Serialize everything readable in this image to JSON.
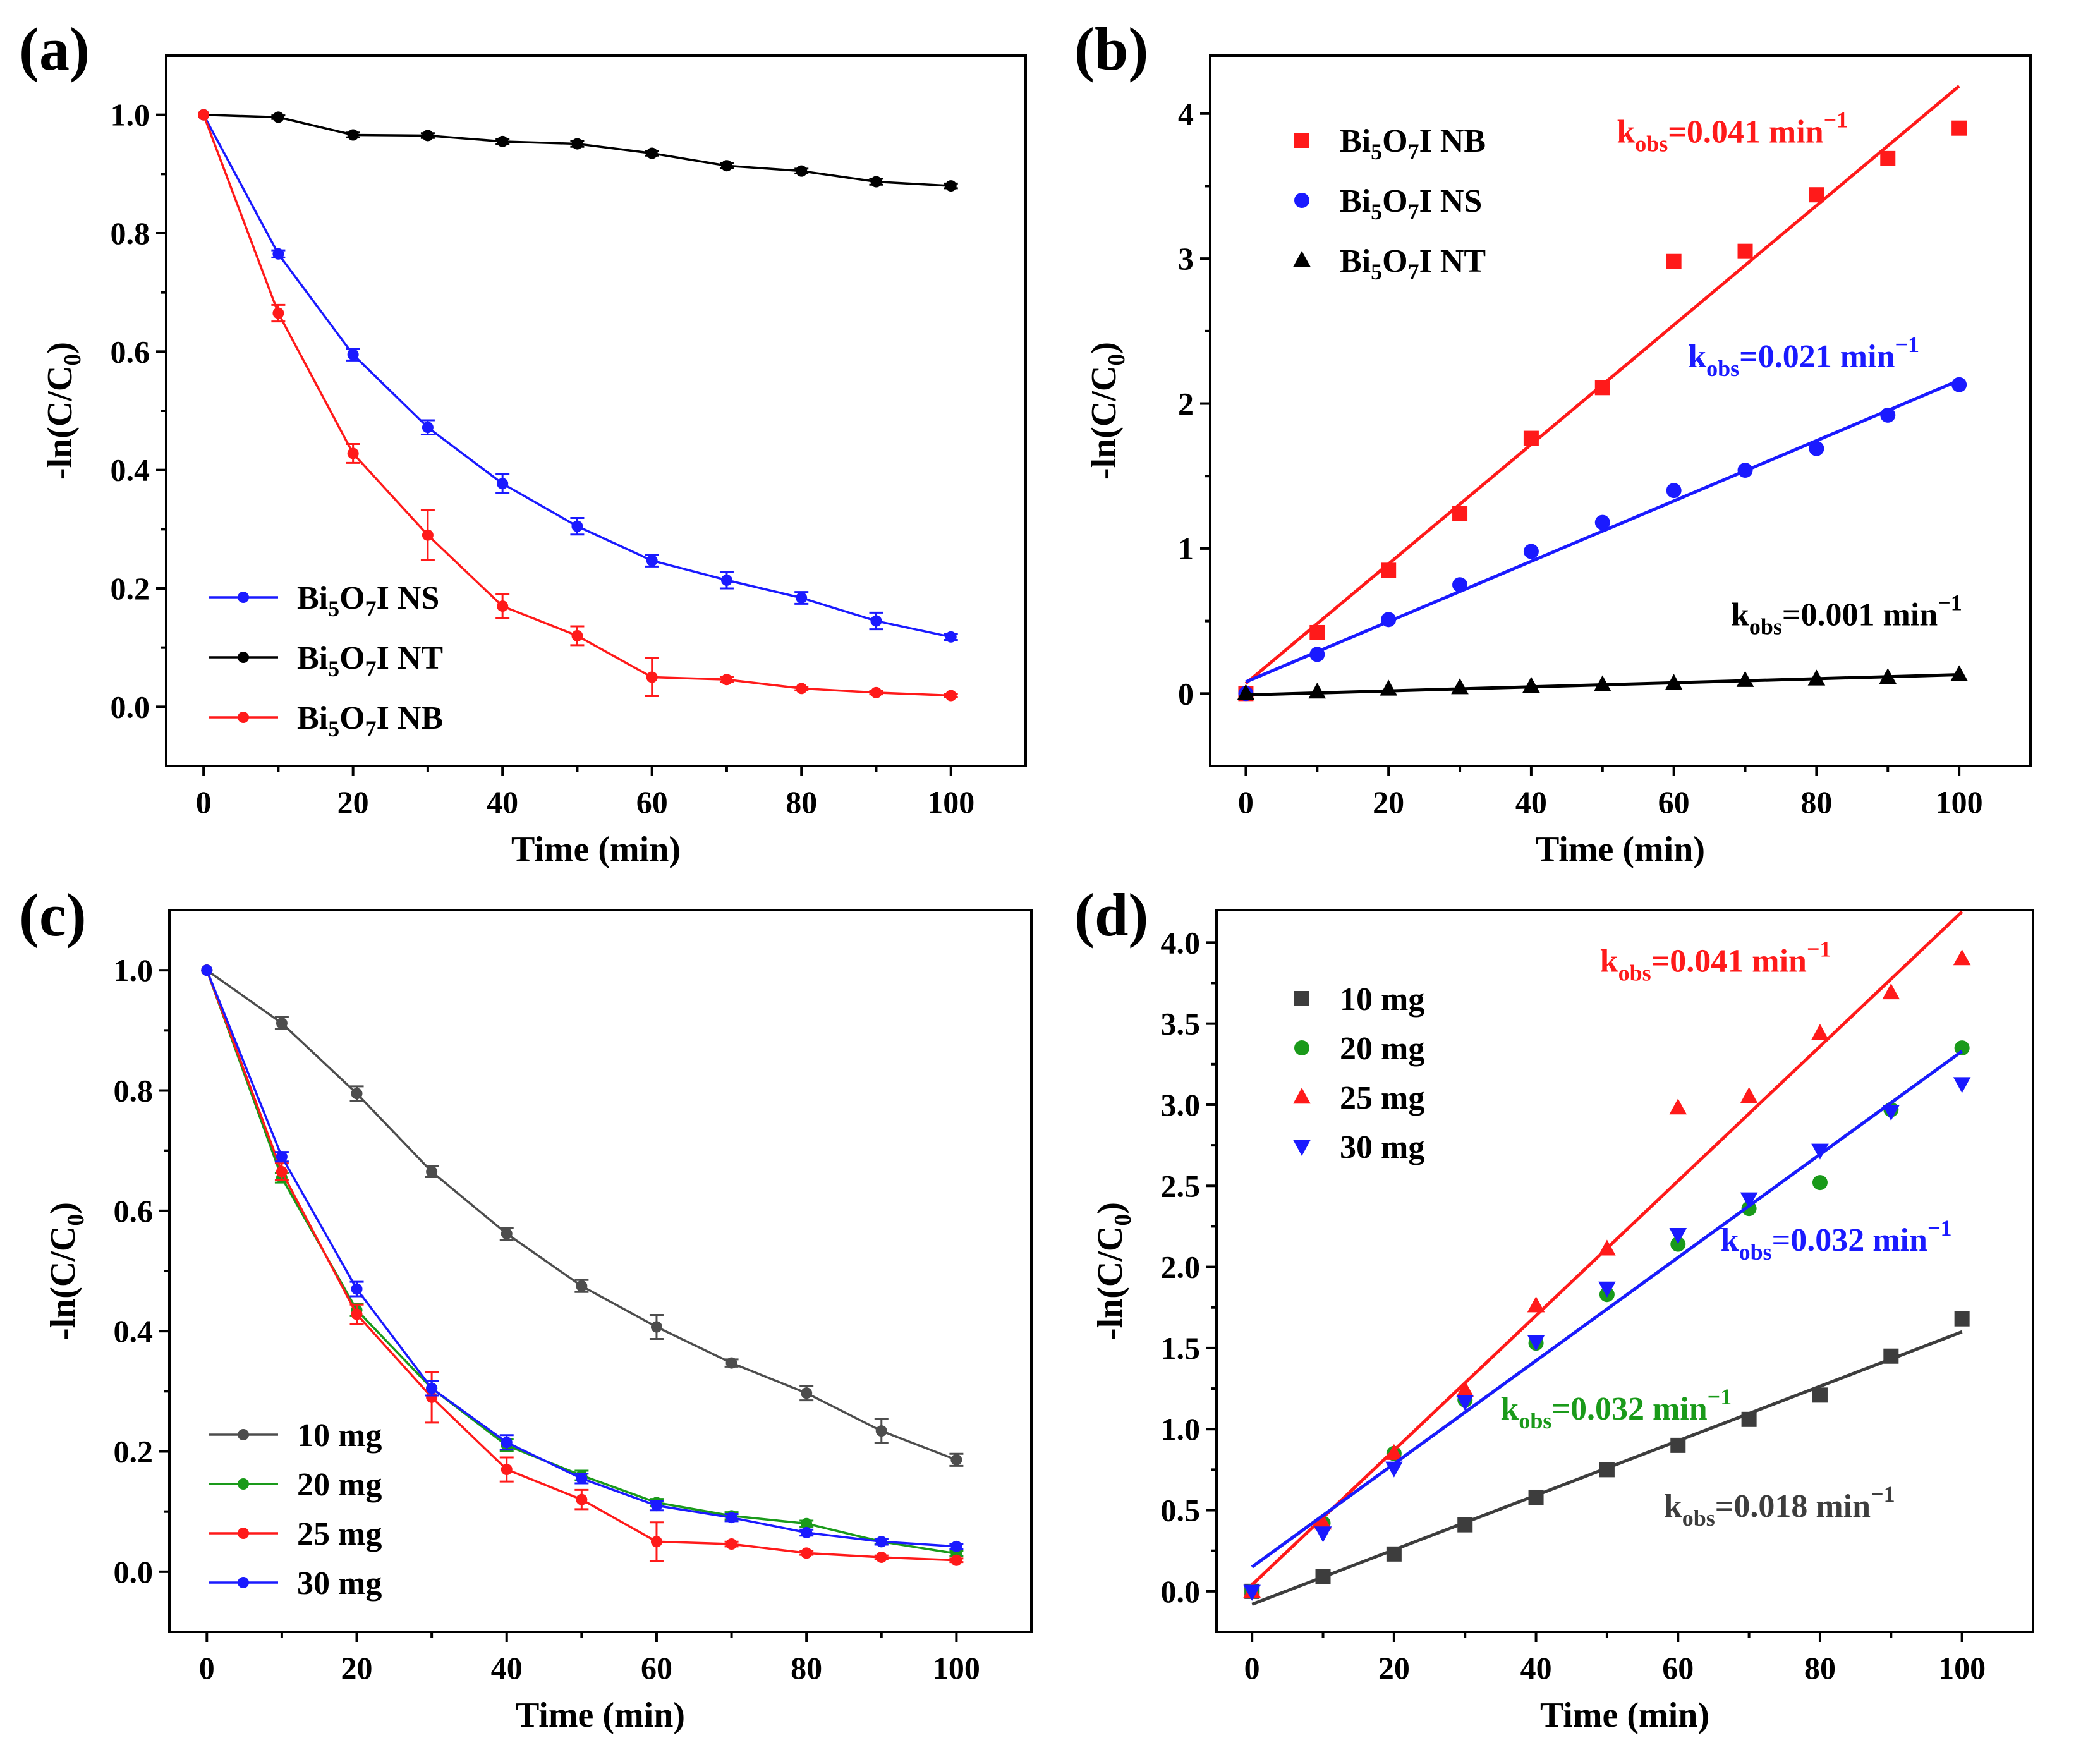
{
  "chart_data": [
    {
      "panel": "(a)",
      "type": "line",
      "xlabel": "Time (min)",
      "ylabel": "-ln(C/C0)",
      "xlim": [
        -5,
        110
      ],
      "ylim": [
        -0.1,
        1.1
      ],
      "xticks": [
        "0",
        "20",
        "40",
        "60",
        "80",
        "100"
      ],
      "yticks": [
        "0.0",
        "0.2",
        "0.4",
        "0.6",
        "0.8",
        "1.0"
      ],
      "legend_position": "bottom-left",
      "x": [
        0,
        10,
        20,
        30,
        40,
        50,
        60,
        70,
        80,
        90,
        100
      ],
      "series": [
        {
          "name": "Bi5O7I NS",
          "color": "#1a1aff",
          "marker": "circle",
          "values": [
            1.0,
            0.765,
            0.595,
            0.472,
            0.377,
            0.305,
            0.247,
            0.214,
            0.184,
            0.145,
            0.118
          ],
          "errors": [
            0,
            0.006,
            0.01,
            0.012,
            0.016,
            0.014,
            0.01,
            0.014,
            0.01,
            0.014,
            0.005
          ]
        },
        {
          "name": "Bi5O7I NT",
          "color": "#000000",
          "marker": "circle",
          "values": [
            1.0,
            0.996,
            0.966,
            0.965,
            0.955,
            0.951,
            0.935,
            0.914,
            0.905,
            0.887,
            0.88
          ],
          "errors": [
            0,
            0.003,
            0.004,
            0.004,
            0.004,
            0.005,
            0.004,
            0.004,
            0.004,
            0.005,
            0.004
          ]
        },
        {
          "name": "Bi5O7I NB",
          "color": "#ff1a1a",
          "marker": "circle",
          "values": [
            1.0,
            0.665,
            0.428,
            0.29,
            0.17,
            0.12,
            0.05,
            0.046,
            0.031,
            0.024,
            0.019
          ],
          "errors": [
            0,
            0.014,
            0.016,
            0.042,
            0.02,
            0.016,
            0.032,
            0.004,
            0.003,
            0.003,
            0.003
          ]
        }
      ]
    },
    {
      "panel": "(b)",
      "type": "scatter",
      "xlabel": "Time (min)",
      "ylabel": "-ln(C/C0)",
      "xlim": [
        -5,
        110
      ],
      "ylim": [
        -0.5,
        4.4
      ],
      "xticks": [
        "0",
        "20",
        "40",
        "60",
        "80",
        "100"
      ],
      "yticks": [
        "0",
        "1",
        "2",
        "3",
        "4"
      ],
      "legend_position": "top-left",
      "x": [
        0,
        10,
        20,
        30,
        40,
        50,
        60,
        70,
        80,
        90,
        100
      ],
      "series": [
        {
          "name": "Bi5O7I NB",
          "color": "#ff1a1a",
          "marker": "square",
          "values": [
            0,
            0.42,
            0.85,
            1.24,
            1.76,
            2.11,
            2.98,
            3.05,
            3.44,
            3.69,
            3.9
          ],
          "fit": [
            0.07,
            4.19
          ],
          "k_label": "=0.041 min",
          "k_pos": [
            52,
            3.8
          ]
        },
        {
          "name": "Bi5O7I NS",
          "color": "#1a1aff",
          "marker": "circle",
          "values": [
            0,
            0.27,
            0.51,
            0.75,
            0.98,
            1.18,
            1.4,
            1.54,
            1.69,
            1.92,
            2.13
          ],
          "fit": [
            0.08,
            2.16
          ],
          "k_label": "=0.021 min",
          "k_pos": [
            62,
            2.25
          ]
        },
        {
          "name": "Bi5O7I NT",
          "color": "#000000",
          "marker": "triangle",
          "values": [
            0,
            0.01,
            0.03,
            0.04,
            0.05,
            0.06,
            0.07,
            0.09,
            0.1,
            0.11,
            0.13
          ],
          "fit": [
            -0.01,
            0.13
          ],
          "k_label": "=0.001 min",
          "k_pos": [
            68,
            0.47
          ]
        }
      ]
    },
    {
      "panel": "(c)",
      "type": "line",
      "xlabel": "Time (min)",
      "ylabel": "-ln(C/C0)",
      "xlim": [
        -5,
        110
      ],
      "ylim": [
        -0.1,
        1.1
      ],
      "xticks": [
        "0",
        "20",
        "40",
        "60",
        "80",
        "100"
      ],
      "yticks": [
        "0.0",
        "0.2",
        "0.4",
        "0.6",
        "0.8",
        "1.0"
      ],
      "legend_position": "bottom-left",
      "x": [
        0,
        10,
        20,
        30,
        40,
        50,
        60,
        70,
        80,
        90,
        100
      ],
      "series": [
        {
          "name": "10 mg",
          "color": "#4d4d4d",
          "marker": "circle",
          "values": [
            1.0,
            0.912,
            0.795,
            0.665,
            0.562,
            0.475,
            0.407,
            0.347,
            0.297,
            0.234,
            0.186
          ],
          "errors": [
            0,
            0.01,
            0.012,
            0.009,
            0.01,
            0.01,
            0.02,
            0.006,
            0.012,
            0.02,
            0.01
          ]
        },
        {
          "name": "20 mg",
          "color": "#1a9a1a",
          "marker": "circle",
          "values": [
            1.0,
            0.655,
            0.435,
            0.305,
            0.21,
            0.16,
            0.115,
            0.093,
            0.08,
            0.05,
            0.03
          ],
          "errors": [
            0,
            0.008,
            0.01,
            0.012,
            0.01,
            0.008,
            0.006,
            0.006,
            0.005,
            0.004,
            0.004
          ]
        },
        {
          "name": "25 mg",
          "color": "#ff1a1a",
          "marker": "circle",
          "values": [
            1.0,
            0.665,
            0.428,
            0.29,
            0.17,
            0.12,
            0.05,
            0.046,
            0.031,
            0.024,
            0.019
          ],
          "errors": [
            0,
            0.014,
            0.016,
            0.042,
            0.02,
            0.016,
            0.032,
            0.004,
            0.003,
            0.003,
            0.003
          ]
        },
        {
          "name": "30 mg",
          "color": "#1a1aff",
          "marker": "circle",
          "values": [
            1.0,
            0.69,
            0.47,
            0.305,
            0.215,
            0.155,
            0.11,
            0.09,
            0.065,
            0.05,
            0.042
          ],
          "errors": [
            0,
            0.008,
            0.012,
            0.012,
            0.012,
            0.008,
            0.008,
            0.006,
            0.005,
            0.005,
            0.004
          ]
        }
      ]
    },
    {
      "panel": "(d)",
      "type": "scatter",
      "xlabel": "Time (min)",
      "ylabel": "-ln(C/C0)",
      "xlim": [
        -5,
        110
      ],
      "ylim": [
        -0.25,
        4.2
      ],
      "xticks": [
        "0",
        "20",
        "40",
        "60",
        "80",
        "100"
      ],
      "yticks": [
        "0.0",
        "0.5",
        "1.0",
        "1.5",
        "2.0",
        "2.5",
        "3.0",
        "3.5",
        "4.0"
      ],
      "legend_position": "top-left",
      "x": [
        0,
        10,
        20,
        30,
        40,
        50,
        60,
        70,
        80,
        90,
        100
      ],
      "series": [
        {
          "name": "10 mg",
          "color": "#3d3d3d",
          "marker": "square",
          "values": [
            0,
            0.09,
            0.23,
            0.41,
            0.58,
            0.75,
            0.9,
            1.06,
            1.21,
            1.45,
            1.68
          ],
          "fit": [
            -0.08,
            1.6
          ],
          "k_label": "=0.018 min",
          "k_pos": [
            58,
            0.46
          ]
        },
        {
          "name": "20 mg",
          "color": "#1a9a1a",
          "marker": "circle",
          "values": [
            0,
            0.42,
            0.85,
            1.18,
            1.53,
            1.83,
            2.14,
            2.36,
            2.52,
            2.97,
            3.35
          ],
          "fit": [
            0.15,
            3.33
          ],
          "k_label": "=0.032 min",
          "k_pos": [
            35,
            1.06
          ]
        },
        {
          "name": "25 mg",
          "color": "#ff1a1a",
          "marker": "triangle",
          "values": [
            0,
            0.42,
            0.85,
            1.24,
            1.76,
            2.11,
            2.98,
            3.05,
            3.44,
            3.69,
            3.9
          ],
          "fit": [
            0.04,
            4.19
          ],
          "k_label": "=0.041 min",
          "k_pos": [
            49,
            3.82
          ]
        },
        {
          "name": "30 mg",
          "color": "#1a1aff",
          "marker": "triangle-down",
          "values": [
            0,
            0.36,
            0.76,
            1.17,
            1.54,
            1.87,
            2.2,
            2.42,
            2.72,
            2.96,
            3.13
          ],
          "fit": [
            0.15,
            3.33
          ],
          "k_label": "=0.032 min",
          "k_pos": [
            66,
            2.1
          ]
        }
      ]
    }
  ],
  "annotation": {
    "k_prefix": "k",
    "k_subscript": "obs",
    "unit_exponent": "−1"
  }
}
